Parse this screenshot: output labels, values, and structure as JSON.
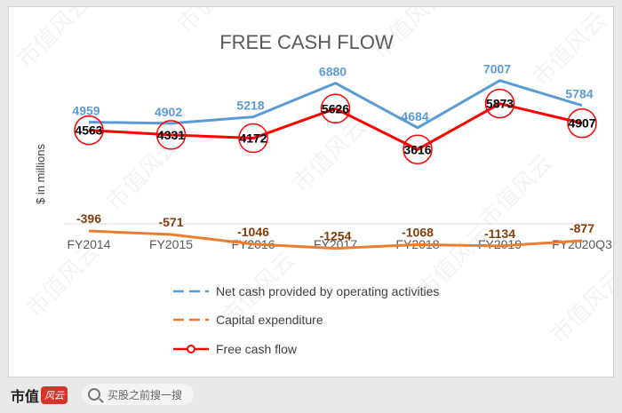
{
  "chart_data": {
    "type": "line",
    "title": "FREE CASH FLOW",
    "ylabel": "$ in millions",
    "categories": [
      "FY2014",
      "FY2015",
      "FY2016",
      "FY2017",
      "FY2018",
      "FY2019",
      "FY2020Q3"
    ],
    "series": [
      {
        "name": "Net cash provided by operating activities",
        "values": [
          4959,
          4902,
          5218,
          6880,
          4684,
          7007,
          5784
        ],
        "color": "#5b9bd5"
      },
      {
        "name": "Capital expenditure",
        "values": [
          -396,
          -571,
          -1046,
          -1254,
          -1068,
          -1134,
          -877
        ],
        "color": "#ed7d31",
        "label_color": "#843c0c"
      },
      {
        "name": "Free cash flow",
        "values": [
          4563,
          4331,
          4172,
          5626,
          3616,
          5873,
          4907
        ],
        "color": "#ff0000"
      }
    ],
    "ylim": [
      -1400,
      8000
    ],
    "grid": false,
    "legend_position": "bottom"
  },
  "footer": {
    "brand": "市值",
    "brand_logo": "风云",
    "search_placeholder": "买股之前搜一搜"
  },
  "watermark": "市值风云"
}
